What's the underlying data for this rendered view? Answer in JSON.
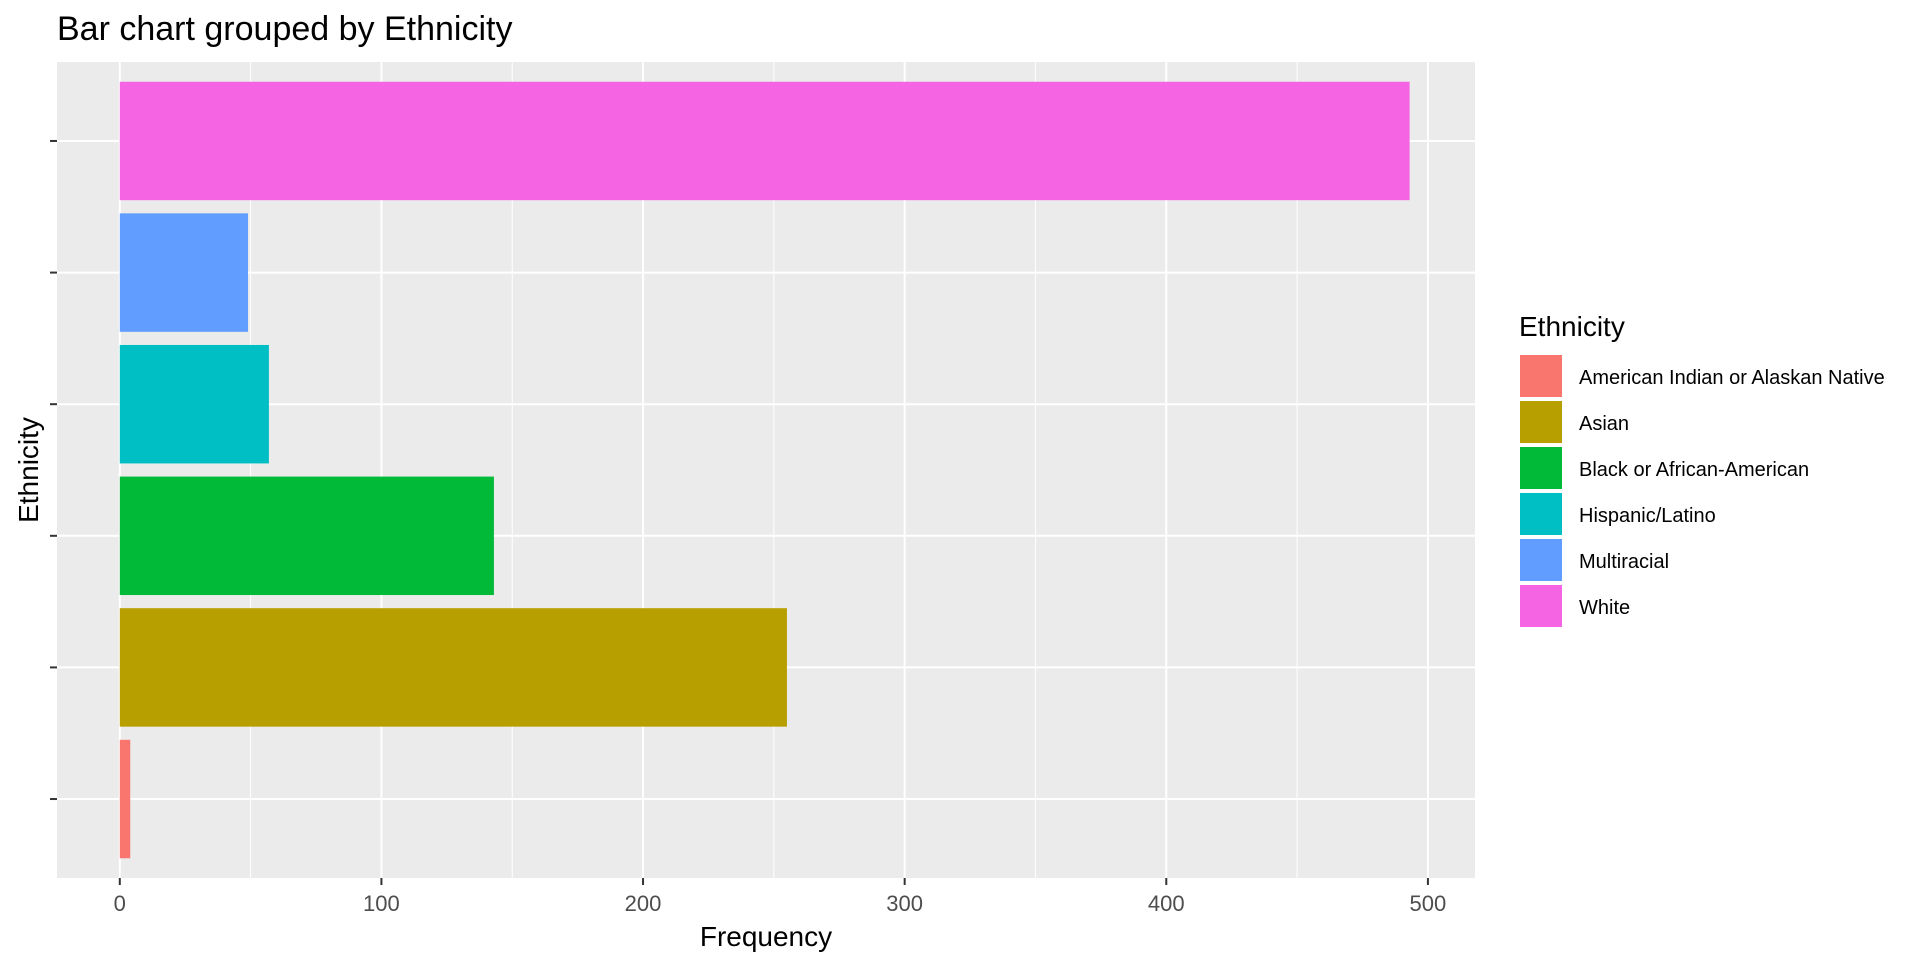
{
  "chart_data": {
    "type": "bar",
    "orientation": "horizontal",
    "title": "Bar chart grouped by Ethnicity",
    "xlabel": "Frequency",
    "ylabel": "Ethnicity",
    "xlim": [
      -24,
      518
    ],
    "x_ticks": [
      0,
      100,
      200,
      300,
      400,
      500
    ],
    "grid": true,
    "y_tick_labels_shown": false,
    "categories": [
      "American Indian or Alaskan Native",
      "Asian",
      "Black or African-American",
      "Hispanic/Latino",
      "Multiracial",
      "White"
    ],
    "values": [
      4,
      255,
      143,
      57,
      49,
      493
    ],
    "colors": [
      "#F8766D",
      "#B79F00",
      "#00BA38",
      "#00BFC4",
      "#619CFF",
      "#F564E3"
    ],
    "panel_background": "#EBEBEB",
    "grid_color": "#FFFFFF",
    "legend": {
      "title": "Ethnicity",
      "position": "right",
      "entries": [
        "American Indian or Alaskan Native",
        "Asian",
        "Black or African-American",
        "Hispanic/Latino",
        "Multiracial",
        "White"
      ]
    }
  }
}
